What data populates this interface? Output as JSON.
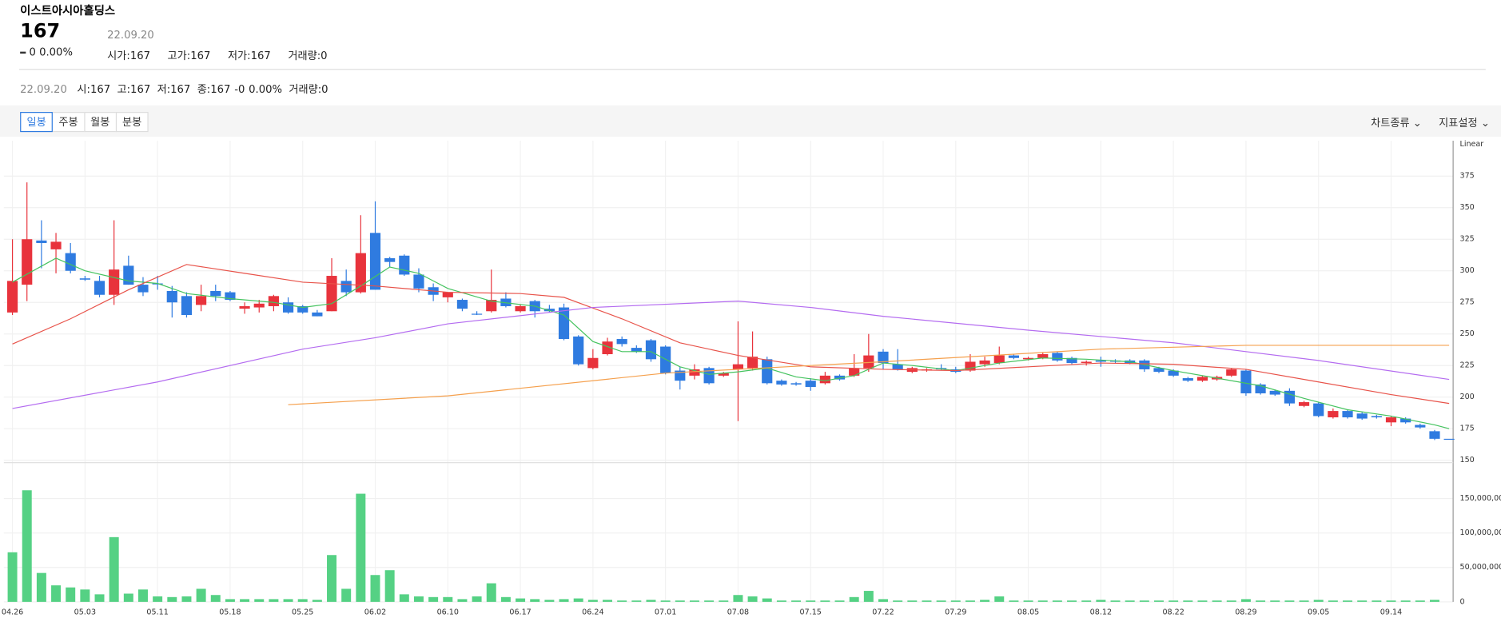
{
  "header": {
    "name": "이스트아시아홀딩스",
    "price": "167",
    "change": "0",
    "change_rate": "0.00%",
    "date": "22.09.20",
    "stats": [
      {
        "label": "시가:",
        "value": "167"
      },
      {
        "label": "고가:",
        "value": "167"
      },
      {
        "label": "저가:",
        "value": "167"
      },
      {
        "label": "거래량:",
        "value": "0"
      }
    ]
  },
  "summary": {
    "date": "22.09.20",
    "items": [
      {
        "label": "시:",
        "value": "167"
      },
      {
        "label": "고:",
        "value": "167"
      },
      {
        "label": "저:",
        "value": "167"
      },
      {
        "label": "종:",
        "value": "167"
      }
    ],
    "change": "-0",
    "change_rate": "0.00%",
    "volume_label": "거래량:",
    "volume": "0"
  },
  "toolbar": {
    "periods": [
      "일봉",
      "주봉",
      "월봉",
      "분봉"
    ],
    "menus": [
      "차트종류",
      "지표설정"
    ]
  },
  "chart_data": {
    "type": "candlestick",
    "scale_label": "Linear",
    "up_color": "#e8333c",
    "down_color": "#2f7be0",
    "volume_color": "#55d184",
    "grid": true,
    "categories": [
      "04.26",
      null,
      null,
      null,
      null,
      "05.03",
      null,
      null,
      null,
      null,
      "05.11",
      null,
      null,
      null,
      null,
      "05.18",
      null,
      null,
      null,
      null,
      "05.25",
      null,
      null,
      null,
      null,
      "06.02",
      null,
      null,
      null,
      null,
      "06.10",
      null,
      null,
      null,
      null,
      "06.17",
      null,
      null,
      null,
      null,
      "06.24",
      null,
      null,
      null,
      null,
      "07.01",
      null,
      null,
      null,
      null,
      "07.08",
      null,
      null,
      null,
      null,
      "07.15",
      null,
      null,
      null,
      null,
      "07.22",
      null,
      null,
      null,
      null,
      "07.29",
      null,
      null,
      null,
      null,
      "08.05",
      null,
      null,
      null,
      null,
      "08.12",
      null,
      null,
      null,
      null,
      "08.22",
      null,
      null,
      null,
      null,
      "08.29",
      null,
      null,
      null,
      null,
      "09.05",
      null,
      null,
      null,
      null,
      "09.14",
      null,
      null,
      null,
      null
    ],
    "open": [
      267,
      289,
      324,
      317,
      314,
      294,
      292,
      281,
      304,
      289,
      290,
      284,
      280,
      273,
      284,
      283,
      270,
      271,
      272,
      275,
      272,
      267,
      268,
      292,
      283,
      330,
      310,
      312,
      297,
      287,
      279,
      277,
      266,
      268,
      278,
      268,
      276,
      270,
      271,
      248,
      223,
      234,
      246,
      239,
      245,
      240,
      221,
      217,
      223,
      217,
      222,
      223,
      230,
      213,
      211,
      213,
      211,
      217,
      217,
      223,
      236,
      226,
      220,
      221,
      223,
      222,
      221,
      226,
      227,
      233,
      230,
      231,
      235,
      231,
      227,
      229,
      229,
      229,
      229,
      223,
      221,
      215,
      213,
      214,
      217,
      221,
      210,
      205,
      205,
      193,
      195,
      184,
      189,
      187,
      185,
      180,
      183,
      178,
      173,
      167
    ],
    "high": [
      325,
      370,
      340,
      330,
      322,
      296,
      296,
      340,
      312,
      295,
      296,
      288,
      283,
      289,
      289,
      284,
      275,
      277,
      281,
      279,
      273,
      269,
      310,
      301,
      344,
      355,
      311,
      313,
      302,
      290,
      283,
      278,
      268,
      301,
      283,
      273,
      277,
      273,
      274,
      249,
      238,
      247,
      248,
      241,
      246,
      241,
      224,
      226,
      224,
      220,
      260,
      252,
      232,
      214,
      212,
      215,
      220,
      218,
      234,
      250,
      238,
      238,
      224,
      223,
      226,
      224,
      234,
      232,
      240,
      234,
      232,
      235,
      236,
      232,
      229,
      232,
      230,
      230,
      230,
      224,
      222,
      216,
      217,
      217,
      223,
      222,
      211,
      206,
      207,
      197,
      196,
      191,
      190,
      188,
      186,
      185,
      184,
      179,
      174,
      167
    ],
    "low": [
      265,
      276,
      302,
      298,
      298,
      292,
      279,
      273,
      289,
      280,
      285,
      263,
      263,
      268,
      276,
      276,
      266,
      267,
      268,
      266,
      266,
      264,
      268,
      280,
      282,
      285,
      303,
      296,
      283,
      276,
      275,
      268,
      265,
      267,
      271,
      267,
      263,
      267,
      245,
      225,
      222,
      233,
      240,
      235,
      228,
      218,
      206,
      214,
      210,
      216,
      181,
      221,
      210,
      209,
      209,
      205,
      210,
      213,
      216,
      220,
      222,
      221,
      219,
      220,
      221,
      219,
      220,
      224,
      226,
      230,
      229,
      230,
      228,
      226,
      225,
      224,
      227,
      226,
      220,
      219,
      216,
      212,
      212,
      213,
      216,
      201,
      202,
      201,
      193,
      192,
      184,
      183,
      183,
      182,
      183,
      177,
      179,
      175,
      166,
      167
    ],
    "close": [
      292,
      325,
      322,
      323,
      300,
      293,
      281,
      301,
      289,
      283,
      290,
      275,
      265,
      280,
      280,
      277,
      272,
      274,
      280,
      267,
      267,
      264,
      296,
      283,
      314,
      285,
      307,
      297,
      286,
      281,
      283,
      270,
      266,
      277,
      272,
      272,
      268,
      268,
      246,
      226,
      231,
      244,
      242,
      236,
      230,
      219,
      213,
      222,
      211,
      219,
      226,
      232,
      211,
      210,
      210,
      208,
      217,
      214,
      223,
      233,
      227,
      222,
      223,
      222,
      222,
      220,
      228,
      229,
      233,
      231,
      231,
      234,
      229,
      227,
      228,
      228,
      228,
      227,
      222,
      220,
      217,
      213,
      216,
      216,
      222,
      203,
      203,
      202,
      195,
      196,
      185,
      189,
      184,
      183,
      184,
      184,
      180,
      176,
      167,
      167
    ],
    "volume": [
      72000000,
      162000000,
      42000000,
      24000000,
      21000000,
      18000000,
      11000000,
      94000000,
      12000000,
      18000000,
      8000000,
      7000000,
      8000000,
      19000000,
      10000000,
      4000000,
      4000000,
      4000000,
      4000000,
      4000000,
      4000000,
      3000000,
      68000000,
      19000000,
      157000000,
      39000000,
      46000000,
      11000000,
      8000000,
      7000000,
      7000000,
      4000000,
      8000000,
      27000000,
      7000000,
      5000000,
      4000000,
      3000000,
      4000000,
      5000000,
      3000000,
      3000000,
      2000000,
      2000000,
      3000000,
      2000000,
      2000000,
      2000000,
      2000000,
      2000000,
      10000000,
      8000000,
      5000000,
      2000000,
      2000000,
      2000000,
      2000000,
      2000000,
      7000000,
      16000000,
      4000000,
      2000000,
      2000000,
      2000000,
      2000000,
      2000000,
      2000000,
      3000000,
      8000000,
      2000000,
      2000000,
      2000000,
      2000000,
      2000000,
      2000000,
      3000000,
      2000000,
      2000000,
      2000000,
      2000000,
      2000000,
      2000000,
      2000000,
      2000000,
      2000000,
      4000000,
      2000000,
      2000000,
      2000000,
      2000000,
      3000000,
      2000000,
      2000000,
      2000000,
      2000000,
      2000000,
      2000000,
      2000000,
      3000000,
      0
    ],
    "series": [
      {
        "color": "#45c35f",
        "x": [
          0,
          3,
          5,
          8,
          10,
          12,
          15,
          18,
          20,
          22,
          24,
          26,
          28,
          30,
          33,
          36,
          38,
          40,
          42,
          44,
          46,
          48,
          50,
          52,
          54,
          56,
          58,
          60,
          62,
          65,
          68,
          71,
          74,
          77,
          80,
          83,
          86,
          89,
          92,
          95,
          98,
          99
        ],
        "values": [
          291,
          310,
          300,
          292,
          290,
          282,
          278,
          275,
          271,
          274,
          288,
          303,
          298,
          286,
          276,
          272,
          265,
          244,
          236,
          236,
          224,
          218,
          220,
          223,
          216,
          213,
          217,
          227,
          225,
          221,
          227,
          231,
          230,
          228,
          221,
          215,
          209,
          199,
          190,
          185,
          178,
          175
        ]
      },
      {
        "color": "#e8534a",
        "x": [
          0,
          4,
          8,
          12,
          16,
          20,
          25,
          30,
          35,
          38,
          42,
          46,
          50,
          55,
          60,
          65,
          70,
          75,
          80,
          85,
          90,
          95,
          99
        ],
        "values": [
          242,
          262,
          285,
          305,
          298,
          291,
          288,
          283,
          282,
          279,
          262,
          243,
          233,
          224,
          222,
          221,
          224,
          227,
          226,
          222,
          212,
          202,
          195
        ]
      },
      {
        "color": "#b46cf0",
        "x": [
          0,
          10,
          20,
          25,
          30,
          40,
          50,
          55,
          60,
          70,
          80,
          90,
          99
        ],
        "values": [
          191,
          212,
          238,
          247,
          258,
          271,
          276,
          271,
          264,
          253,
          243,
          229,
          214
        ]
      },
      {
        "color": "#f5a04d",
        "x": [
          19,
          30,
          45,
          60,
          75,
          85,
          99
        ],
        "values": [
          194,
          201,
          219,
          228,
          238,
          241,
          241
        ]
      }
    ],
    "ylim": [
      150,
      400
    ],
    "yticks": [
      150,
      175,
      200,
      225,
      250,
      275,
      300,
      325,
      350,
      375
    ],
    "volume_ylim": [
      0,
      200000000
    ],
    "volume_yticks": [
      0,
      {
        "value": 50000000,
        "label": "50,000,000"
      },
      {
        "value": 100000000,
        "label": "100,000,000"
      },
      {
        "value": 150000000,
        "label": "150,000,000"
      }
    ]
  }
}
